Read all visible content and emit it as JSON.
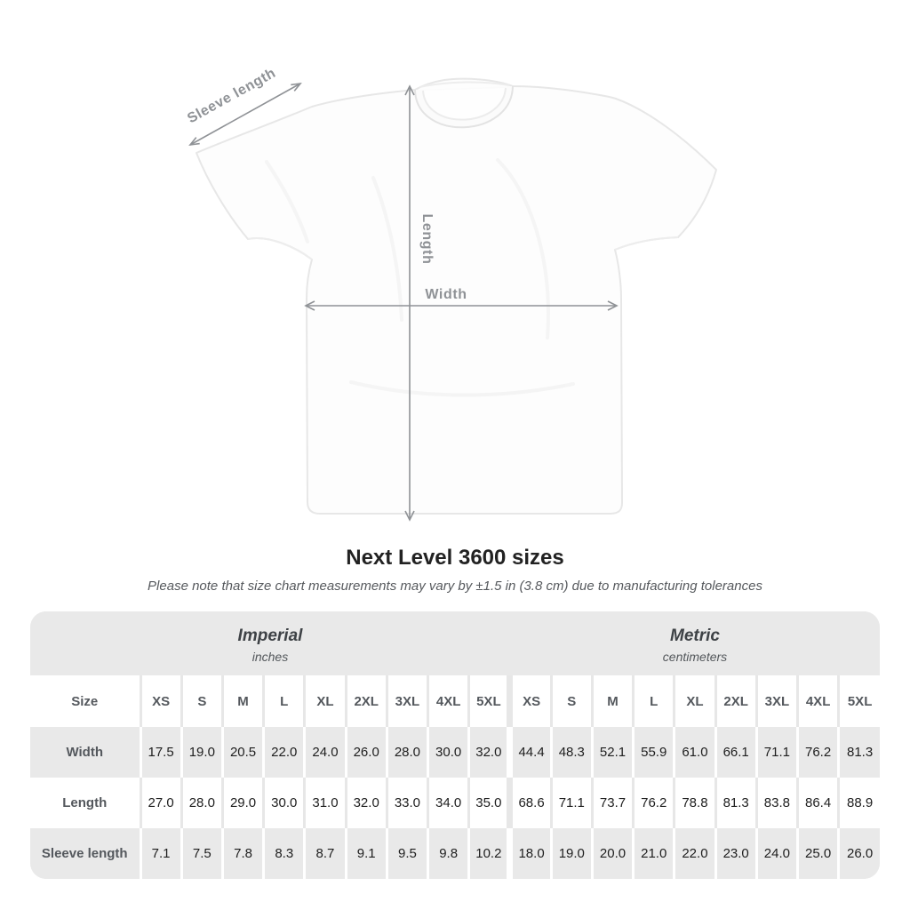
{
  "figure": {
    "sleeve_length_label": "Sleeve length",
    "length_label": "Length",
    "width_label": "Width"
  },
  "title": "Next Level 3600 sizes",
  "tolerance_note": "Please note that size chart measurements may vary by ±1.5 in (3.8 cm) due to manufacturing tolerances",
  "table": {
    "imperial_header": {
      "title": "Imperial",
      "unit": "inches"
    },
    "metric_header": {
      "title": "Metric",
      "unit": "centimeters"
    },
    "size_label": "Size",
    "sizes": [
      "XS",
      "S",
      "M",
      "L",
      "XL",
      "2XL",
      "3XL",
      "4XL",
      "5XL"
    ],
    "rows": [
      {
        "label": "Width",
        "imperial": [
          "17.5",
          "19.0",
          "20.5",
          "22.0",
          "24.0",
          "26.0",
          "28.0",
          "30.0",
          "32.0"
        ],
        "metric": [
          "44.4",
          "48.3",
          "52.1",
          "55.9",
          "61.0",
          "66.1",
          "71.1",
          "76.2",
          "81.3"
        ]
      },
      {
        "label": "Length",
        "imperial": [
          "27.0",
          "28.0",
          "29.0",
          "30.0",
          "31.0",
          "32.0",
          "33.0",
          "34.0",
          "35.0"
        ],
        "metric": [
          "68.6",
          "71.1",
          "73.7",
          "76.2",
          "78.8",
          "81.3",
          "83.8",
          "86.4",
          "88.9"
        ]
      },
      {
        "label": "Sleeve length",
        "imperial": [
          "7.1",
          "7.5",
          "7.8",
          "8.3",
          "8.7",
          "9.1",
          "9.5",
          "9.8",
          "10.2"
        ],
        "metric": [
          "18.0",
          "19.0",
          "20.0",
          "21.0",
          "22.0",
          "23.0",
          "24.0",
          "25.0",
          "26.0"
        ]
      }
    ]
  },
  "chart_data": {
    "type": "table",
    "title": "Next Level 3600 sizes",
    "note": "Measurements may vary by ±1.5 in (3.8 cm) due to manufacturing tolerances",
    "units": {
      "imperial": "inches",
      "metric": "centimeters"
    },
    "sizes": [
      "XS",
      "S",
      "M",
      "L",
      "XL",
      "2XL",
      "3XL",
      "4XL",
      "5XL"
    ],
    "measurements": {
      "width_in": [
        17.5,
        19.0,
        20.5,
        22.0,
        24.0,
        26.0,
        28.0,
        30.0,
        32.0
      ],
      "width_cm": [
        44.4,
        48.3,
        52.1,
        55.9,
        61.0,
        66.1,
        71.1,
        76.2,
        81.3
      ],
      "length_in": [
        27.0,
        28.0,
        29.0,
        30.0,
        31.0,
        32.0,
        33.0,
        34.0,
        35.0
      ],
      "length_cm": [
        68.6,
        71.1,
        73.7,
        76.2,
        78.8,
        81.3,
        83.8,
        86.4,
        88.9
      ],
      "sleeve_in": [
        7.1,
        7.5,
        7.8,
        8.3,
        8.7,
        9.1,
        9.5,
        9.8,
        10.2
      ],
      "sleeve_cm": [
        18.0,
        19.0,
        20.0,
        21.0,
        22.0,
        23.0,
        24.0,
        25.0,
        26.0
      ]
    }
  },
  "colors": {
    "band_gray": "#e9e9e9",
    "row_white": "#ffffff",
    "separator_on_white": "#e7e7e7",
    "separator_on_gray": "#ffffff",
    "label_text": "#54585d",
    "value_text": "#1e1e1e",
    "arrow_gray": "#8f9296",
    "title_text": "#222222",
    "note_text": "#56595d",
    "shirt_outline": "#e7e7e7"
  }
}
